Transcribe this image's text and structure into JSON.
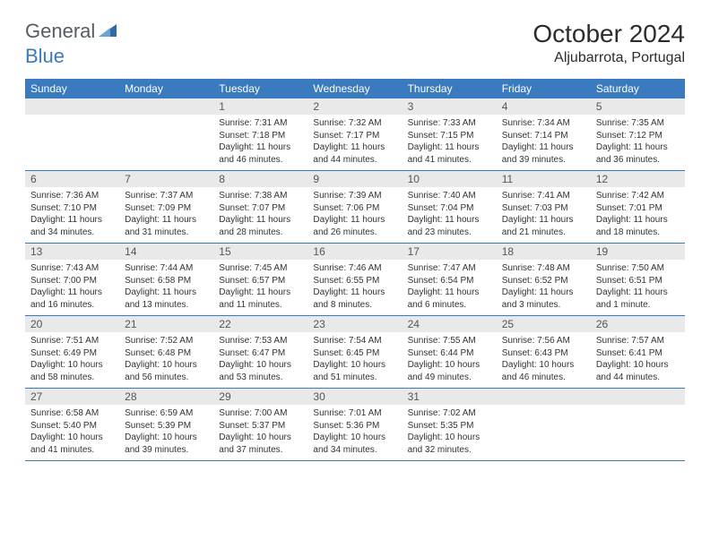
{
  "brand": {
    "text1": "General",
    "text2": "Blue",
    "icon_color": "#2f6aa8"
  },
  "title": "October 2024",
  "location": "Aljubarrota, Portugal",
  "colors": {
    "header_bg": "#3a7bbf",
    "header_text": "#ffffff",
    "daynum_bg": "#e9e9e9",
    "rule": "#3a7bbf",
    "body_text": "#333333"
  },
  "day_headers": [
    "Sunday",
    "Monday",
    "Tuesday",
    "Wednesday",
    "Thursday",
    "Friday",
    "Saturday"
  ],
  "weeks": [
    [
      {
        "n": "",
        "lines": [
          "",
          "",
          ""
        ]
      },
      {
        "n": "",
        "lines": [
          "",
          "",
          ""
        ]
      },
      {
        "n": "1",
        "lines": [
          "Sunrise: 7:31 AM",
          "Sunset: 7:18 PM",
          "Daylight: 11 hours and 46 minutes."
        ]
      },
      {
        "n": "2",
        "lines": [
          "Sunrise: 7:32 AM",
          "Sunset: 7:17 PM",
          "Daylight: 11 hours and 44 minutes."
        ]
      },
      {
        "n": "3",
        "lines": [
          "Sunrise: 7:33 AM",
          "Sunset: 7:15 PM",
          "Daylight: 11 hours and 41 minutes."
        ]
      },
      {
        "n": "4",
        "lines": [
          "Sunrise: 7:34 AM",
          "Sunset: 7:14 PM",
          "Daylight: 11 hours and 39 minutes."
        ]
      },
      {
        "n": "5",
        "lines": [
          "Sunrise: 7:35 AM",
          "Sunset: 7:12 PM",
          "Daylight: 11 hours and 36 minutes."
        ]
      }
    ],
    [
      {
        "n": "6",
        "lines": [
          "Sunrise: 7:36 AM",
          "Sunset: 7:10 PM",
          "Daylight: 11 hours and 34 minutes."
        ]
      },
      {
        "n": "7",
        "lines": [
          "Sunrise: 7:37 AM",
          "Sunset: 7:09 PM",
          "Daylight: 11 hours and 31 minutes."
        ]
      },
      {
        "n": "8",
        "lines": [
          "Sunrise: 7:38 AM",
          "Sunset: 7:07 PM",
          "Daylight: 11 hours and 28 minutes."
        ]
      },
      {
        "n": "9",
        "lines": [
          "Sunrise: 7:39 AM",
          "Sunset: 7:06 PM",
          "Daylight: 11 hours and 26 minutes."
        ]
      },
      {
        "n": "10",
        "lines": [
          "Sunrise: 7:40 AM",
          "Sunset: 7:04 PM",
          "Daylight: 11 hours and 23 minutes."
        ]
      },
      {
        "n": "11",
        "lines": [
          "Sunrise: 7:41 AM",
          "Sunset: 7:03 PM",
          "Daylight: 11 hours and 21 minutes."
        ]
      },
      {
        "n": "12",
        "lines": [
          "Sunrise: 7:42 AM",
          "Sunset: 7:01 PM",
          "Daylight: 11 hours and 18 minutes."
        ]
      }
    ],
    [
      {
        "n": "13",
        "lines": [
          "Sunrise: 7:43 AM",
          "Sunset: 7:00 PM",
          "Daylight: 11 hours and 16 minutes."
        ]
      },
      {
        "n": "14",
        "lines": [
          "Sunrise: 7:44 AM",
          "Sunset: 6:58 PM",
          "Daylight: 11 hours and 13 minutes."
        ]
      },
      {
        "n": "15",
        "lines": [
          "Sunrise: 7:45 AM",
          "Sunset: 6:57 PM",
          "Daylight: 11 hours and 11 minutes."
        ]
      },
      {
        "n": "16",
        "lines": [
          "Sunrise: 7:46 AM",
          "Sunset: 6:55 PM",
          "Daylight: 11 hours and 8 minutes."
        ]
      },
      {
        "n": "17",
        "lines": [
          "Sunrise: 7:47 AM",
          "Sunset: 6:54 PM",
          "Daylight: 11 hours and 6 minutes."
        ]
      },
      {
        "n": "18",
        "lines": [
          "Sunrise: 7:48 AM",
          "Sunset: 6:52 PM",
          "Daylight: 11 hours and 3 minutes."
        ]
      },
      {
        "n": "19",
        "lines": [
          "Sunrise: 7:50 AM",
          "Sunset: 6:51 PM",
          "Daylight: 11 hours and 1 minute."
        ]
      }
    ],
    [
      {
        "n": "20",
        "lines": [
          "Sunrise: 7:51 AM",
          "Sunset: 6:49 PM",
          "Daylight: 10 hours and 58 minutes."
        ]
      },
      {
        "n": "21",
        "lines": [
          "Sunrise: 7:52 AM",
          "Sunset: 6:48 PM",
          "Daylight: 10 hours and 56 minutes."
        ]
      },
      {
        "n": "22",
        "lines": [
          "Sunrise: 7:53 AM",
          "Sunset: 6:47 PM",
          "Daylight: 10 hours and 53 minutes."
        ]
      },
      {
        "n": "23",
        "lines": [
          "Sunrise: 7:54 AM",
          "Sunset: 6:45 PM",
          "Daylight: 10 hours and 51 minutes."
        ]
      },
      {
        "n": "24",
        "lines": [
          "Sunrise: 7:55 AM",
          "Sunset: 6:44 PM",
          "Daylight: 10 hours and 49 minutes."
        ]
      },
      {
        "n": "25",
        "lines": [
          "Sunrise: 7:56 AM",
          "Sunset: 6:43 PM",
          "Daylight: 10 hours and 46 minutes."
        ]
      },
      {
        "n": "26",
        "lines": [
          "Sunrise: 7:57 AM",
          "Sunset: 6:41 PM",
          "Daylight: 10 hours and 44 minutes."
        ]
      }
    ],
    [
      {
        "n": "27",
        "lines": [
          "Sunrise: 6:58 AM",
          "Sunset: 5:40 PM",
          "Daylight: 10 hours and 41 minutes."
        ]
      },
      {
        "n": "28",
        "lines": [
          "Sunrise: 6:59 AM",
          "Sunset: 5:39 PM",
          "Daylight: 10 hours and 39 minutes."
        ]
      },
      {
        "n": "29",
        "lines": [
          "Sunrise: 7:00 AM",
          "Sunset: 5:37 PM",
          "Daylight: 10 hours and 37 minutes."
        ]
      },
      {
        "n": "30",
        "lines": [
          "Sunrise: 7:01 AM",
          "Sunset: 5:36 PM",
          "Daylight: 10 hours and 34 minutes."
        ]
      },
      {
        "n": "31",
        "lines": [
          "Sunrise: 7:02 AM",
          "Sunset: 5:35 PM",
          "Daylight: 10 hours and 32 minutes."
        ]
      },
      {
        "n": "",
        "lines": [
          "",
          "",
          ""
        ]
      },
      {
        "n": "",
        "lines": [
          "",
          "",
          ""
        ]
      }
    ]
  ]
}
